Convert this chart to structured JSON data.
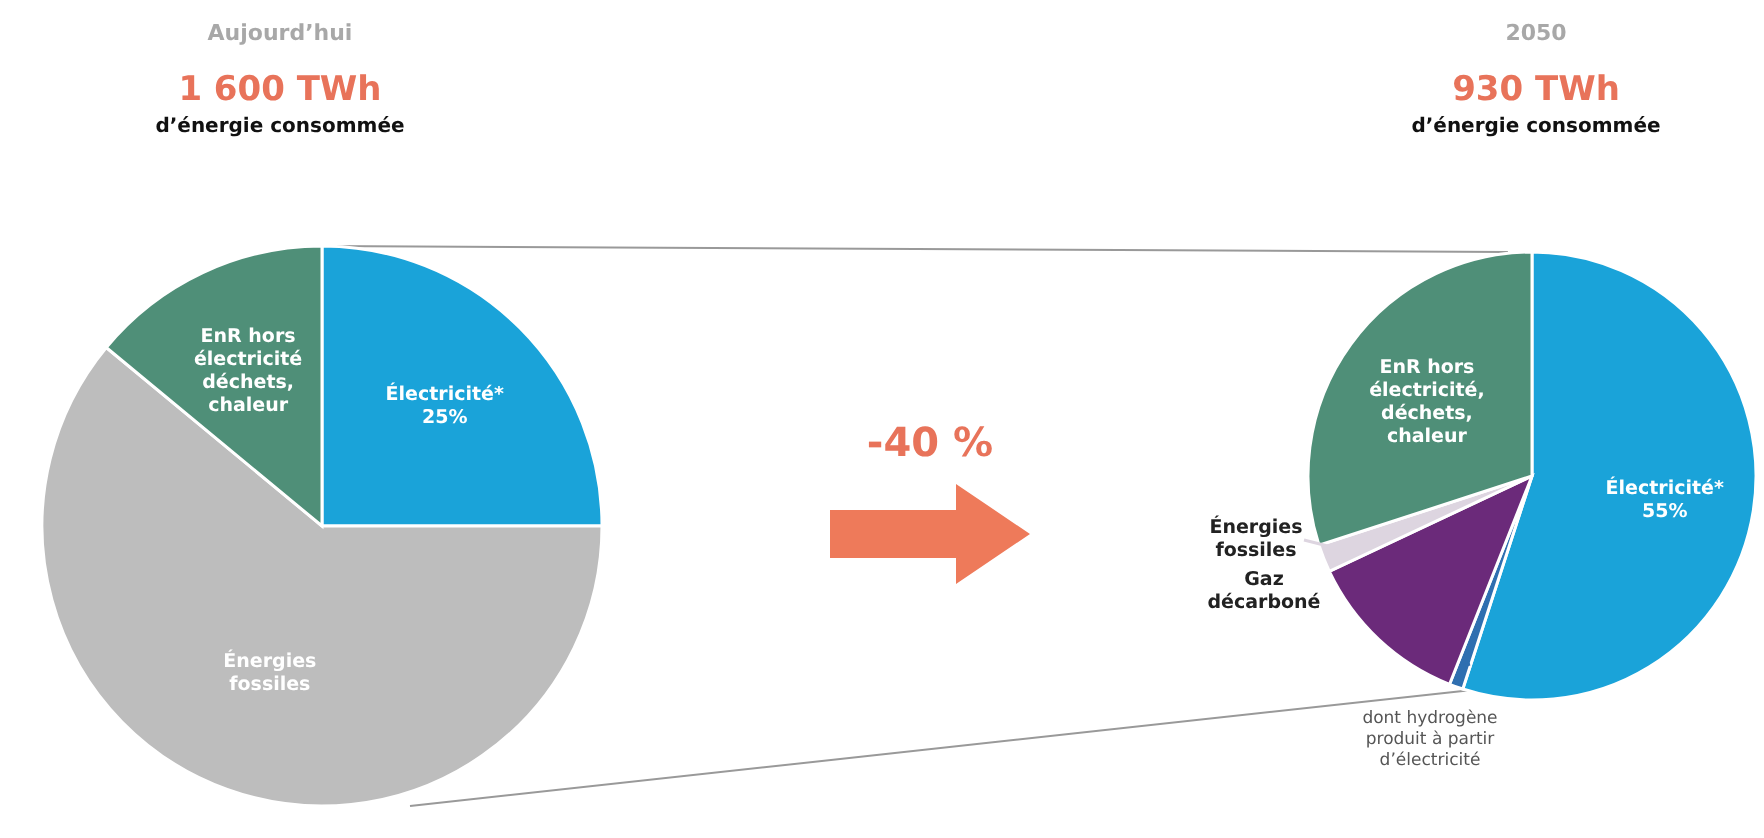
{
  "chart_data": [
    {
      "type": "pie",
      "title": "Aujourd’hui",
      "subtitle": "1 600 TWh",
      "annotations": [
        "d’énergie consommée"
      ],
      "categories": [
        "Électricité* 25%",
        "Énergies fossiles",
        "EnR hors électricité déchets, chaleur"
      ],
      "values": [
        25,
        61,
        14
      ],
      "colors": [
        "#1aa3d9",
        "#bdbdbd",
        "#4f8f78"
      ]
    },
    {
      "type": "pie",
      "title": "2050",
      "subtitle": "930 TWh",
      "annotations": [
        "d’énergie consommée",
        "-40 %"
      ],
      "categories": [
        "Électricité* 55%",
        "dont hydrogène produit à partir d’électricité",
        "Gaz décarboné",
        "Énergies fossiles",
        "EnR hors électricité, déchets, chaleur"
      ],
      "values": [
        55,
        1,
        12,
        2,
        30
      ],
      "colors": [
        "#1aa3d9",
        "#2f6fb0",
        "#6b2a7a",
        "#ddd5e0",
        "#4f8f78"
      ]
    }
  ]
}
